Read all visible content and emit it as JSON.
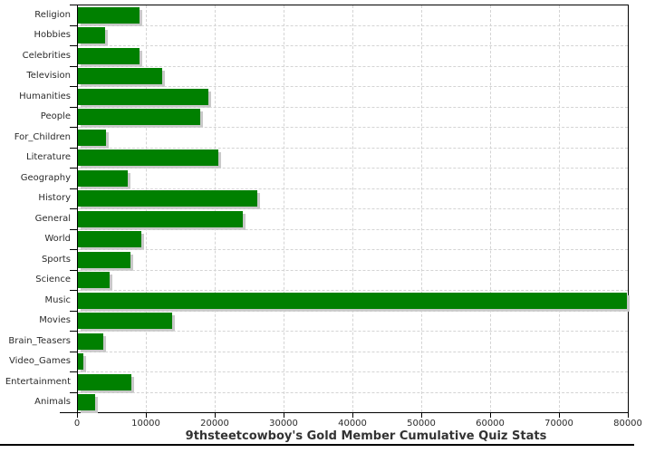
{
  "chart_data": {
    "type": "bar",
    "orientation": "horizontal",
    "title": "9thsteetcowboy's Gold Member Cumulative Quiz Stats",
    "categories": [
      "Religion",
      "Hobbies",
      "Celebrities",
      "Television",
      "Humanities",
      "People",
      "For_Children",
      "Literature",
      "Geography",
      "History",
      "General",
      "World",
      "Sports",
      "Science",
      "Music",
      "Movies",
      "Brain_Teasers",
      "Video_Games",
      "Entertainment",
      "Animals"
    ],
    "values": [
      8900,
      3900,
      8900,
      12300,
      18900,
      17700,
      4100,
      20400,
      7250,
      26100,
      24000,
      9200,
      7600,
      4600,
      79800,
      13700,
      3700,
      800,
      7700,
      2450
    ],
    "xlabel": "",
    "ylabel": "",
    "xlim": [
      0,
      80000
    ],
    "x_ticks": [
      0,
      10000,
      20000,
      30000,
      40000,
      50000,
      60000,
      70000,
      80000
    ],
    "grid": "dashed",
    "legend": "none",
    "bar_color": "#008000",
    "shadow_color": "#c9c9c9",
    "grid_color": "#d4d4d4",
    "axis_color": "#000000",
    "label_color": "#2b2b2b"
  }
}
